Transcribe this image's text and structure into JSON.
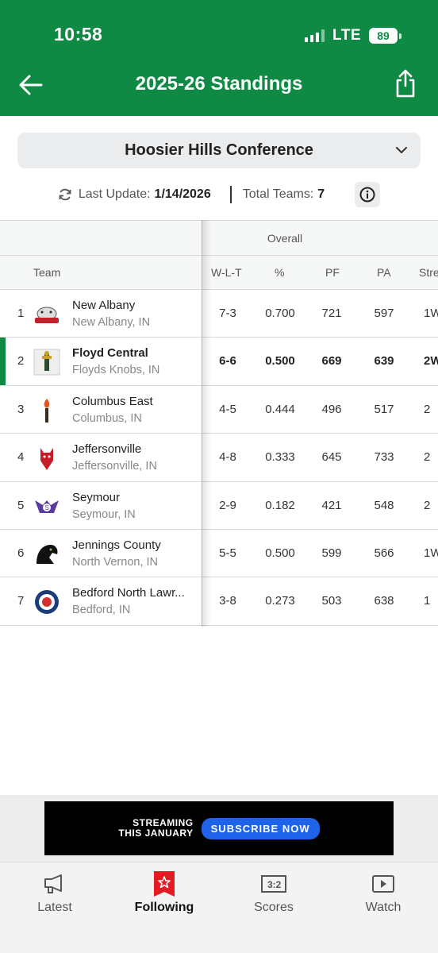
{
  "status": {
    "time": "10:58",
    "network": "LTE",
    "battery": "89"
  },
  "nav": {
    "title": "2025-26 Standings"
  },
  "conference": {
    "selected": "Hoosier Hills Conference"
  },
  "update": {
    "label": "Last Update:",
    "date": "1/14/2026",
    "total_label": "Total Teams:",
    "total": "7"
  },
  "table": {
    "group_header": "Overall",
    "columns": {
      "team": "Team",
      "wlt": "W-L-T",
      "pct": "%",
      "pf": "PF",
      "pa": "PA",
      "streak": "Streak"
    },
    "rows": [
      {
        "rank": "1",
        "name": "New Albany",
        "location": "New Albany, IN",
        "wlt": "7-3",
        "pct": "0.700",
        "pf": "721",
        "pa": "597",
        "streak": "1W"
      },
      {
        "rank": "2",
        "name": "Floyd Central",
        "location": "Floyds Knobs, IN",
        "wlt": "6-6",
        "pct": "0.500",
        "pf": "669",
        "pa": "639",
        "streak": "2W"
      },
      {
        "rank": "3",
        "name": "Columbus East",
        "location": "Columbus, IN",
        "wlt": "4-5",
        "pct": "0.444",
        "pf": "496",
        "pa": "517",
        "streak": "2"
      },
      {
        "rank": "4",
        "name": "Jeffersonville",
        "location": "Jeffersonville, IN",
        "wlt": "4-8",
        "pct": "0.333",
        "pf": "645",
        "pa": "733",
        "streak": "2"
      },
      {
        "rank": "5",
        "name": "Seymour",
        "location": "Seymour, IN",
        "wlt": "2-9",
        "pct": "0.182",
        "pf": "421",
        "pa": "548",
        "streak": "2"
      },
      {
        "rank": "6",
        "name": "Jennings County",
        "location": "North Vernon, IN",
        "wlt": "5-5",
        "pct": "0.500",
        "pf": "599",
        "pa": "566",
        "streak": "1W"
      },
      {
        "rank": "7",
        "name": "Bedford North Lawr...",
        "location": "Bedford, IN",
        "wlt": "3-8",
        "pct": "0.273",
        "pf": "503",
        "pa": "638",
        "streak": "1"
      }
    ]
  },
  "ad": {
    "line1": "STREAMING",
    "line2": "THIS JANUARY",
    "cta": "SUBSCRIBE NOW"
  },
  "tabs": [
    {
      "label": "Latest",
      "icon": "megaphone-icon"
    },
    {
      "label": "Following",
      "icon": "star-icon"
    },
    {
      "label": "Scores",
      "icon": "scoreboard-icon"
    },
    {
      "label": "Watch",
      "icon": "play-icon"
    }
  ],
  "colors": {
    "brand": "#0f8a44",
    "ad_button": "#1e63e9",
    "following": "#e31b23"
  }
}
